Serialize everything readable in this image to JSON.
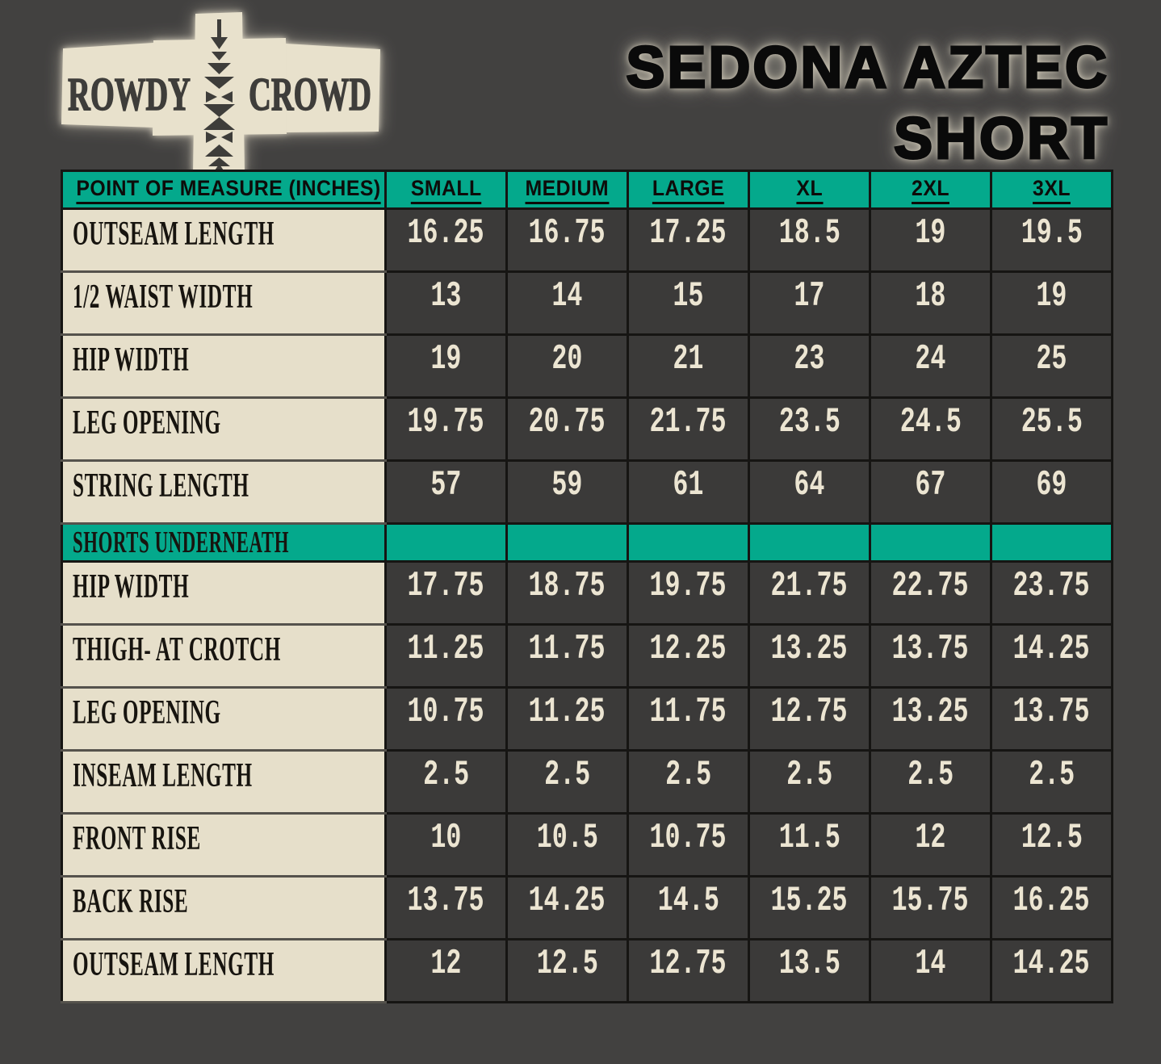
{
  "page": {
    "background_color": "#424140",
    "accent_teal": "#04a98c",
    "cream": "#e6dfca",
    "cell_dark": "#3b3a39",
    "number_color": "#ece5d2"
  },
  "logo": {
    "brand_word_left": "ROWDY",
    "brand_word_right": "CROWD",
    "motif": "aztec-arrow-column-icon"
  },
  "title": {
    "line1": "SEDONA AZTEC",
    "line2": "SHORT"
  },
  "chart_data": {
    "type": "table",
    "title": "SEDONA AZTEC SHORT",
    "columns": [
      "POINT OF MEASURE (INCHES)",
      "SMALL",
      "MEDIUM",
      "LARGE",
      "XL",
      "2XL",
      "3XL"
    ],
    "sections": [
      {
        "section_label": null,
        "rows": [
          {
            "label": "OUTSEAM LENGTH",
            "values": [
              "16.25",
              "16.75",
              "17.25",
              "18.5",
              "19",
              "19.5"
            ]
          },
          {
            "label": "1/2 WAIST WIDTH",
            "values": [
              "13",
              "14",
              "15",
              "17",
              "18",
              "19"
            ]
          },
          {
            "label": "HIP WIDTH",
            "values": [
              "19",
              "20",
              "21",
              "23",
              "24",
              "25"
            ]
          },
          {
            "label": "LEG OPENING",
            "values": [
              "19.75",
              "20.75",
              "21.75",
              "23.5",
              "24.5",
              "25.5"
            ]
          },
          {
            "label": "STRING LENGTH",
            "values": [
              "57",
              "59",
              "61",
              "64",
              "67",
              "69"
            ]
          }
        ]
      },
      {
        "section_label": "SHORTS UNDERNEATH",
        "rows": [
          {
            "label": "HIP WIDTH",
            "values": [
              "17.75",
              "18.75",
              "19.75",
              "21.75",
              "22.75",
              "23.75"
            ]
          },
          {
            "label": "THIGH- AT CROTCH",
            "values": [
              "11.25",
              "11.75",
              "12.25",
              "13.25",
              "13.75",
              "14.25"
            ]
          },
          {
            "label": "LEG OPENING",
            "values": [
              "10.75",
              "11.25",
              "11.75",
              "12.75",
              "13.25",
              "13.75"
            ]
          },
          {
            "label": "INSEAM LENGTH",
            "values": [
              "2.5",
              "2.5",
              "2.5",
              "2.5",
              "2.5",
              "2.5"
            ]
          },
          {
            "label": "FRONT RISE",
            "values": [
              "10",
              "10.5",
              "10.75",
              "11.5",
              "12",
              "12.5"
            ]
          },
          {
            "label": "BACK RISE",
            "values": [
              "13.75",
              "14.25",
              "14.5",
              "15.25",
              "15.75",
              "16.25"
            ]
          },
          {
            "label": "OUTSEAM LENGTH",
            "values": [
              "12",
              "12.5",
              "12.75",
              "13.5",
              "14",
              "14.25"
            ]
          }
        ]
      }
    ]
  }
}
